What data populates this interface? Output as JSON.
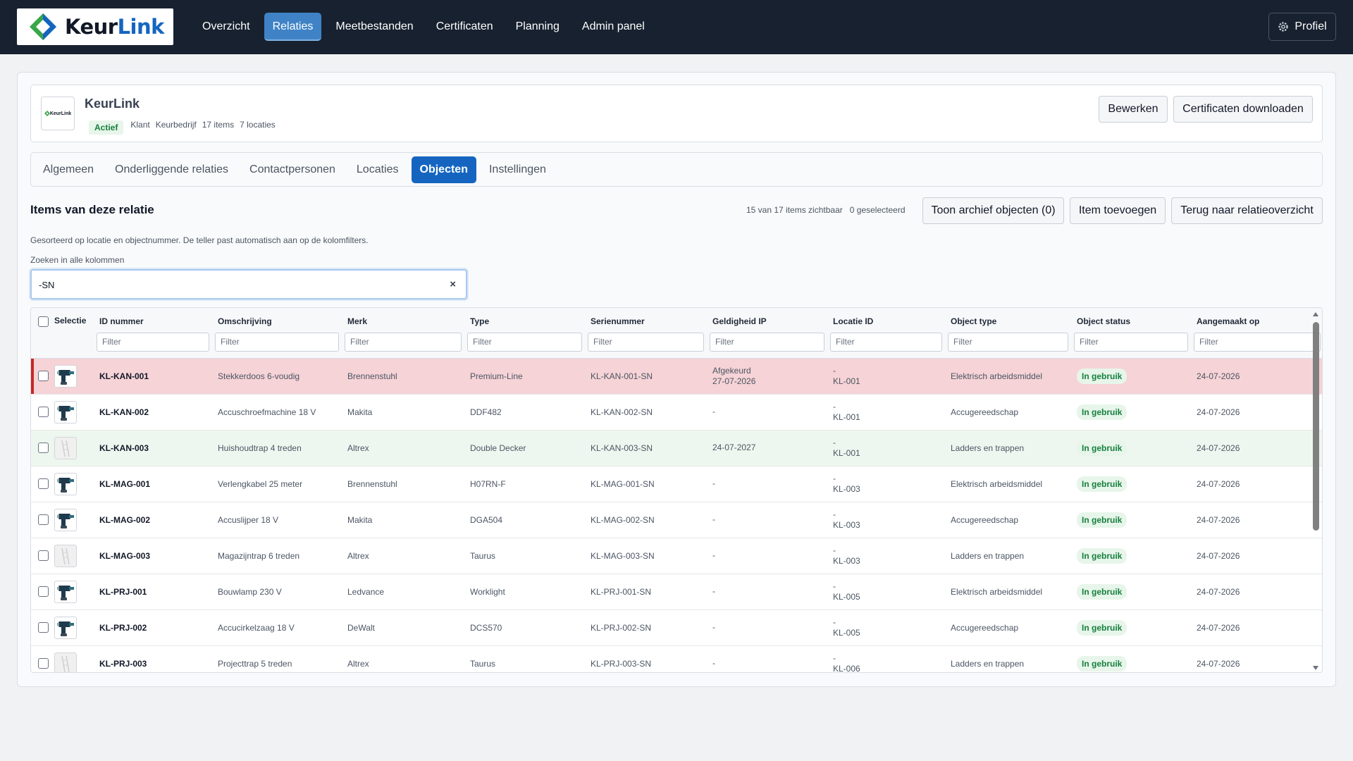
{
  "brand": {
    "name_part1": "Keur",
    "name_part2": "Link",
    "accent_color": "#1565c0",
    "logo_icon": "diamond-logo-icon"
  },
  "nav": {
    "items": [
      "Overzicht",
      "Relaties",
      "Meetbestanden",
      "Certificaten",
      "Planning",
      "Admin panel"
    ],
    "active": "Relaties",
    "profile_label": "Profiel",
    "profile_icon": "gear-icon"
  },
  "relation": {
    "name": "KeurLink",
    "status": "Actief",
    "meta": [
      "Klant",
      "Keurbedrijf",
      "17 items",
      "7 locaties"
    ],
    "logo_text": "KeurLink",
    "edit_label": "Bewerken",
    "download_label": "Certificaten downloaden"
  },
  "tabs": {
    "items": [
      "Algemeen",
      "Onderliggende relaties",
      "Contactpersonen",
      "Locaties",
      "Objecten",
      "Instellingen"
    ],
    "active": "Objecten"
  },
  "objects": {
    "title": "Items van deze relatie",
    "visible_count": "15 van 17 items zichtbaar",
    "selected_count": "0 geselecteerd",
    "archive_button": "Toon archief objecten (0)",
    "add_button": "Item toevoegen",
    "back_button": "Terug naar relatieoverzicht",
    "hint": "Gesorteerd op locatie en objectnummer. De teller past automatisch aan op de kolomfilters.",
    "search_label": "Zoeken in alle kolommen",
    "search_value": "-SN",
    "clear_icon": "×"
  },
  "table": {
    "columns": [
      "Selectie",
      "ID nummer",
      "Omschrijving",
      "Merk",
      "Type",
      "Serienummer",
      "Geldigheid IP",
      "Locatie ID",
      "Object type",
      "Object status",
      "Aangemaakt op"
    ],
    "filter_placeholder": "Filter",
    "rows": [
      {
        "state": "red",
        "thumb": "drill-icon",
        "id": "KL-KAN-001",
        "desc": "Stekkerdoos 6-voudig",
        "merk": "Brennenstuhl",
        "type": "Premium-Line",
        "serial": "KL-KAN-001-SN",
        "ip1": "Afgekeurd",
        "ip2": "27-07-2026",
        "loc1": "-",
        "loc2": "KL-001",
        "otype": "Elektrisch arbeidsmiddel",
        "status": "In gebruik",
        "created": "24-07-2026"
      },
      {
        "state": "normal",
        "thumb": "drill-icon",
        "id": "KL-KAN-002",
        "desc": "Accuschroefmachine 18 V",
        "merk": "Makita",
        "type": "DDF482",
        "serial": "KL-KAN-002-SN",
        "ip1": "-",
        "ip2": "",
        "loc1": "-",
        "loc2": "KL-001",
        "otype": "Accugereedschap",
        "status": "In gebruik",
        "created": "24-07-2026"
      },
      {
        "state": "green",
        "thumb": "ladder-icon",
        "id": "KL-KAN-003",
        "desc": "Huishoudtrap 4 treden",
        "merk": "Altrex",
        "type": "Double Decker",
        "serial": "KL-KAN-003-SN",
        "ip1": "24-07-2027",
        "ip2": "",
        "loc1": "-",
        "loc2": "KL-001",
        "otype": "Ladders en trappen",
        "status": "In gebruik",
        "created": "24-07-2026"
      },
      {
        "state": "normal",
        "thumb": "drill-icon",
        "id": "KL-MAG-001",
        "desc": "Verlengkabel 25 meter",
        "merk": "Brennenstuhl",
        "type": "H07RN-F",
        "serial": "KL-MAG-001-SN",
        "ip1": "-",
        "ip2": "",
        "loc1": "-",
        "loc2": "KL-003",
        "otype": "Elektrisch arbeidsmiddel",
        "status": "In gebruik",
        "created": "24-07-2026"
      },
      {
        "state": "normal",
        "thumb": "drill-icon",
        "id": "KL-MAG-002",
        "desc": "Accuslijper 18 V",
        "merk": "Makita",
        "type": "DGA504",
        "serial": "KL-MAG-002-SN",
        "ip1": "-",
        "ip2": "",
        "loc1": "-",
        "loc2": "KL-003",
        "otype": "Accugereedschap",
        "status": "In gebruik",
        "created": "24-07-2026"
      },
      {
        "state": "normal",
        "thumb": "ladder-icon",
        "id": "KL-MAG-003",
        "desc": "Magazijntrap 6 treden",
        "merk": "Altrex",
        "type": "Taurus",
        "serial": "KL-MAG-003-SN",
        "ip1": "-",
        "ip2": "",
        "loc1": "-",
        "loc2": "KL-003",
        "otype": "Ladders en trappen",
        "status": "In gebruik",
        "created": "24-07-2026"
      },
      {
        "state": "normal",
        "thumb": "drill-icon",
        "id": "KL-PRJ-001",
        "desc": "Bouwlamp 230 V",
        "merk": "Ledvance",
        "type": "Worklight",
        "serial": "KL-PRJ-001-SN",
        "ip1": "-",
        "ip2": "",
        "loc1": "-",
        "loc2": "KL-005",
        "otype": "Elektrisch arbeidsmiddel",
        "status": "In gebruik",
        "created": "24-07-2026"
      },
      {
        "state": "normal",
        "thumb": "drill-icon",
        "id": "KL-PRJ-002",
        "desc": "Accucirkelzaag 18 V",
        "merk": "DeWalt",
        "type": "DCS570",
        "serial": "KL-PRJ-002-SN",
        "ip1": "-",
        "ip2": "",
        "loc1": "-",
        "loc2": "KL-005",
        "otype": "Accugereedschap",
        "status": "In gebruik",
        "created": "24-07-2026"
      },
      {
        "state": "normal",
        "thumb": "ladder-icon",
        "id": "KL-PRJ-003",
        "desc": "Projecttrap 5 treden",
        "merk": "Altrex",
        "type": "Taurus",
        "serial": "KL-PRJ-003-SN",
        "ip1": "-",
        "ip2": "",
        "loc1": "-",
        "loc2": "KL-006",
        "otype": "Ladders en trappen",
        "status": "In gebruik",
        "created": "24-07-2026"
      }
    ]
  },
  "colors": {
    "nav_bg": "#17212f",
    "active_tab": "#1565c0",
    "rejected_row": "#f6d3d6",
    "valid_row": "#eef7ef",
    "status_green": "#15803d"
  }
}
